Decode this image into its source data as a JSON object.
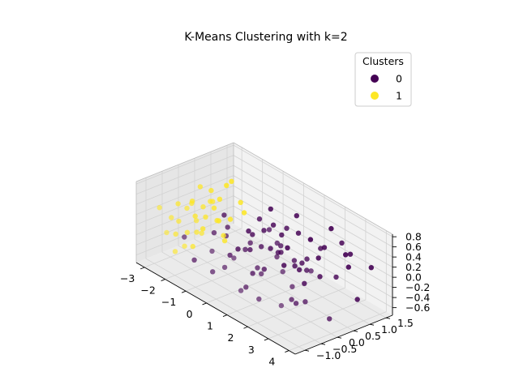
{
  "chart_data": {
    "type": "scatter",
    "title": "K-Means Clustering with k=2",
    "projection": "3d",
    "xlim": [
      -3.4,
      4.3
    ],
    "ylim": [
      -1.3,
      1.7
    ],
    "zlim": [
      -0.75,
      0.85
    ],
    "x_ticks": [
      -3,
      -2,
      -1,
      0,
      1,
      2,
      3,
      4
    ],
    "y_ticks": [
      -1.0,
      -0.5,
      0.0,
      0.5,
      1.0,
      1.5
    ],
    "z_ticks": [
      -0.6,
      -0.4,
      -0.2,
      0.0,
      0.2,
      0.4,
      0.6,
      0.8
    ],
    "x_tick_labels": [
      "−3",
      "−2",
      "−1",
      "0",
      "1",
      "2",
      "3",
      "4"
    ],
    "y_tick_labels": [
      "−1.0",
      "−0.5",
      "0.0",
      "0.5",
      "1.0",
      "1.5"
    ],
    "z_tick_labels": [
      "−0.6",
      "−0.4",
      "−0.2",
      "0.0",
      "0.2",
      "0.4",
      "0.6",
      "0.8"
    ],
    "grid": true,
    "legend": {
      "title": "Clusters",
      "position": "top-right",
      "entries": [
        {
          "label": "0",
          "color": "#440154"
        },
        {
          "label": "1",
          "color": "#fde725"
        }
      ]
    },
    "series": [
      {
        "name": "0",
        "color": "#440154",
        "points": [
          [
            -0.6,
            0.5,
            0.0
          ],
          [
            -0.2,
            0.6,
            0.15
          ],
          [
            0.2,
            0.55,
            -0.1
          ],
          [
            0.5,
            0.7,
            0.2
          ],
          [
            0.8,
            0.4,
            0.0
          ],
          [
            1.0,
            0.9,
            0.3
          ],
          [
            1.3,
            0.6,
            -0.2
          ],
          [
            0.3,
            0.2,
            0.05
          ],
          [
            0.6,
            0.1,
            -0.3
          ],
          [
            1.1,
            0.3,
            0.1
          ],
          [
            -0.4,
            0.3,
            -0.2
          ],
          [
            0.0,
            -0.1,
            0.0
          ],
          [
            0.4,
            -0.2,
            0.25
          ],
          [
            0.9,
            -0.3,
            -0.1
          ],
          [
            1.4,
            0.1,
            0.35
          ],
          [
            1.8,
            0.5,
            0.0
          ],
          [
            2.2,
            0.8,
            -0.25
          ],
          [
            2.5,
            0.2,
            0.1
          ],
          [
            2.9,
            -0.1,
            -0.35
          ],
          [
            3.3,
            0.6,
            0.05
          ],
          [
            3.7,
            1.0,
            -0.4
          ],
          [
            3.9,
            1.3,
            0.2
          ],
          [
            2.0,
            -0.4,
            0.4
          ],
          [
            1.6,
            -0.7,
            -0.45
          ],
          [
            2.6,
            -0.6,
            0.3
          ],
          [
            3.0,
            -0.9,
            -0.2
          ],
          [
            3.5,
            -0.3,
            0.45
          ],
          [
            -0.9,
            0.0,
            -0.35
          ],
          [
            -1.2,
            -0.3,
            0.1
          ],
          [
            -0.8,
            -0.6,
            -0.5
          ],
          [
            -0.3,
            -0.5,
            0.3
          ],
          [
            0.1,
            -0.8,
            -0.15
          ],
          [
            0.7,
            -0.9,
            0.2
          ],
          [
            1.2,
            -1.0,
            -0.3
          ],
          [
            1.7,
            -0.2,
            0.55
          ],
          [
            2.3,
            0.0,
            -0.55
          ],
          [
            2.7,
            0.5,
            0.5
          ],
          [
            3.2,
            1.1,
            0.35
          ],
          [
            -1.5,
            0.2,
            0.25
          ],
          [
            -1.1,
            0.7,
            -0.1
          ],
          [
            -0.5,
            1.0,
            0.4
          ],
          [
            0.0,
            1.2,
            -0.3
          ],
          [
            0.6,
            1.1,
            0.5
          ],
          [
            1.5,
            1.2,
            -0.15
          ],
          [
            2.1,
            1.0,
            0.25
          ],
          [
            2.8,
            1.3,
            -0.05
          ],
          [
            -2.0,
            -0.4,
            -0.6
          ],
          [
            -1.7,
            -0.9,
            0.05
          ],
          [
            0.2,
            0.0,
            -0.45
          ],
          [
            0.9,
            0.6,
            0.45
          ],
          [
            1.4,
            -0.5,
            -0.05
          ],
          [
            1.9,
            0.2,
            0.15
          ],
          [
            2.4,
            -0.2,
            -0.4
          ],
          [
            -0.1,
            0.4,
            0.45
          ],
          [
            0.5,
            -0.4,
            -0.55
          ],
          [
            1.0,
            0.0,
            0.6
          ],
          [
            1.6,
            0.7,
            -0.5
          ],
          [
            2.2,
            0.4,
            0.2
          ],
          [
            -0.7,
            -0.2,
            0.3
          ],
          [
            3.6,
            0.2,
            -0.6
          ],
          [
            3.1,
            0.9,
            0.6
          ],
          [
            2.5,
            1.4,
            0.1
          ],
          [
            0.3,
            0.9,
            -0.5
          ],
          [
            -1.3,
            0.5,
            -0.45
          ],
          [
            1.8,
            1.4,
            0.45
          ],
          [
            0.8,
            1.4,
            0.0
          ],
          [
            -0.2,
            -1.0,
            0.15
          ],
          [
            2.9,
            -0.5,
            0.05
          ],
          [
            1.2,
            0.8,
            -0.35
          ],
          [
            0.1,
            0.7,
            0.3
          ]
        ]
      },
      {
        "name": "1",
        "color": "#fde725",
        "points": [
          [
            -2.8,
            -0.6,
            0.1
          ],
          [
            -2.5,
            -0.3,
            -0.2
          ],
          [
            -2.2,
            0.0,
            0.3
          ],
          [
            -2.9,
            0.2,
            -0.1
          ],
          [
            -2.6,
            0.5,
            0.4
          ],
          [
            -2.3,
            -0.8,
            -0.4
          ],
          [
            -2.0,
            0.3,
            0.0
          ],
          [
            -3.1,
            -0.2,
            0.2
          ],
          [
            -2.7,
            0.8,
            -0.3
          ],
          [
            -2.4,
            1.0,
            0.5
          ],
          [
            -1.9,
            -0.4,
            0.2
          ],
          [
            -2.1,
            0.6,
            -0.5
          ],
          [
            -2.9,
            -0.9,
            0.35
          ],
          [
            -2.5,
            0.1,
            0.6
          ],
          [
            -2.2,
            -0.2,
            -0.15
          ],
          [
            -1.8,
            0.9,
            0.25
          ],
          [
            -3.0,
            0.5,
            -0.45
          ],
          [
            -2.6,
            -0.5,
            0.05
          ],
          [
            -2.3,
            0.4,
            0.15
          ],
          [
            -2.0,
            -0.7,
            -0.25
          ],
          [
            -2.8,
            1.1,
            0.3
          ],
          [
            -2.4,
            -1.0,
            0.0
          ],
          [
            -1.9,
            0.1,
            0.45
          ],
          [
            -2.7,
            0.0,
            -0.6
          ],
          [
            -2.1,
            1.2,
            -0.1
          ],
          [
            -1.7,
            -0.1,
            0.55
          ],
          [
            -2.5,
            0.7,
            0.2
          ],
          [
            -3.2,
            0.3,
            0.1
          ],
          [
            -2.2,
            -0.5,
            0.4
          ],
          [
            -2.0,
            0.5,
            -0.35
          ],
          [
            -2.6,
            -0.1,
            0.3
          ],
          [
            -1.8,
            -0.3,
            -0.05
          ],
          [
            -2.3,
            0.9,
            -0.2
          ],
          [
            -2.9,
            -0.4,
            -0.3
          ],
          [
            -2.4,
            0.2,
            0.0
          ]
        ]
      }
    ]
  }
}
